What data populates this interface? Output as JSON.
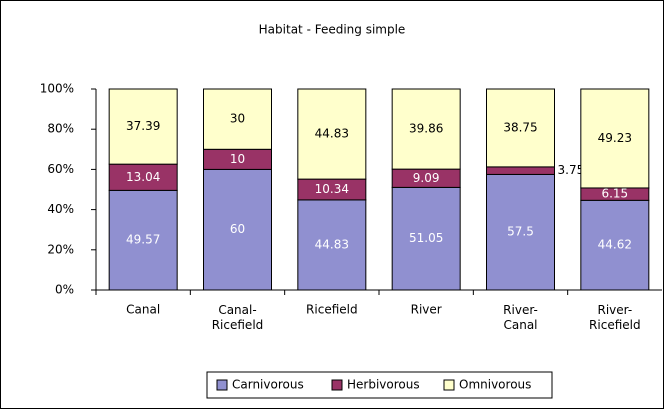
{
  "chart_data": {
    "type": "stacked_bar",
    "title": "Habitat - Feeding simple",
    "categories": [
      "Canal",
      "Canal-Ricefield",
      "Ricefield",
      "River",
      "River-Canal",
      "River-Ricefield"
    ],
    "series": [
      {
        "name": "Carnivorous",
        "color": "#9090d0",
        "values": [
          49.57,
          60,
          44.83,
          51.05,
          57.5,
          44.62
        ]
      },
      {
        "name": "Herbivorous",
        "color": "#993366",
        "values": [
          13.04,
          10,
          10.34,
          9.09,
          3.75,
          6.15
        ]
      },
      {
        "name": "Omnivorous",
        "color": "#ffffcc",
        "values": [
          37.39,
          30,
          44.83,
          39.86,
          38.75,
          49.23
        ]
      }
    ],
    "ylim": [
      0,
      100
    ],
    "yticks": [
      {
        "value": 0,
        "label": "0%"
      },
      {
        "value": 20,
        "label": "20%"
      },
      {
        "value": 40,
        "label": "40%"
      },
      {
        "value": 60,
        "label": "60%"
      },
      {
        "value": 80,
        "label": "80%"
      },
      {
        "value": 100,
        "label": "100%"
      }
    ],
    "grid": false,
    "legend": "bottom"
  }
}
